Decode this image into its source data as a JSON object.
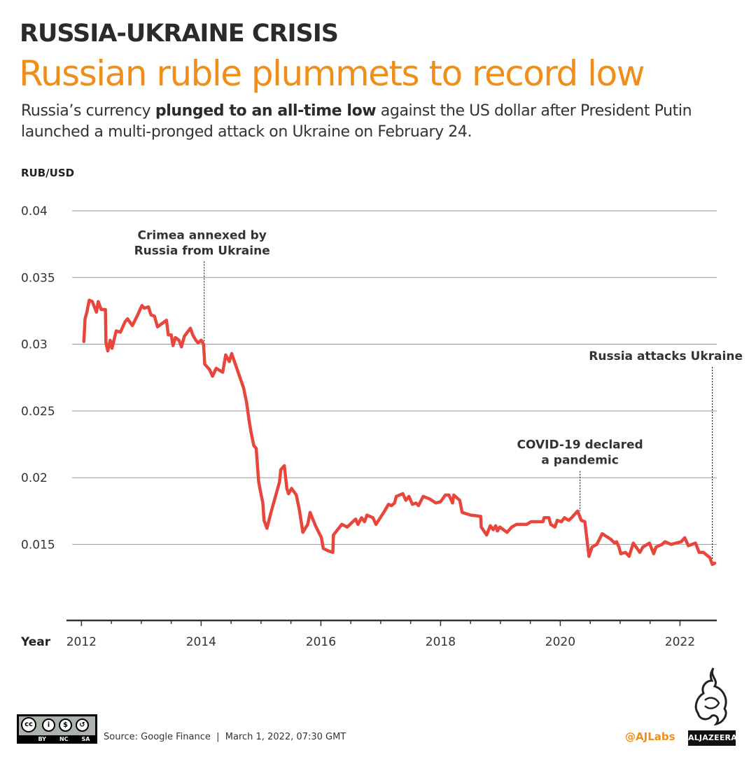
{
  "header": {
    "kicker": "RUSSIA-UKRAINE CRISIS",
    "title": "Russian ruble plummets to record low",
    "desc_pre": "Russia’s currency ",
    "desc_bold": "plunged to an all-time low",
    "desc_post": " against the US dollar after President Putin launched a multi-pronged attack on Ukraine on February 24."
  },
  "chart_data": {
    "type": "line",
    "ylabel": "RUB/USD",
    "xlabel": "Year",
    "xlim": [
      2011.75,
      2022.58
    ],
    "ylim": [
      0.0093,
      0.04
    ],
    "yticks": [
      0.04,
      0.035,
      0.03,
      0.025,
      0.02,
      0.015
    ],
    "ytick_labels": [
      "0.04",
      "0.035",
      "0.03",
      "0.025",
      "0.02",
      "0.015"
    ],
    "xticks": [
      2012,
      2014,
      2016,
      2018,
      2020,
      2022
    ],
    "xtick_labels": [
      "2012",
      "2014",
      "2016",
      "2018",
      "2020",
      "2022"
    ],
    "grid": "horizontal",
    "line_color": "#e8453c",
    "series": [
      {
        "points": [
          [
            2012.04,
            0.0302
          ],
          [
            2012.06,
            0.0319
          ],
          [
            2012.09,
            0.0324
          ],
          [
            2012.13,
            0.0333
          ],
          [
            2012.18,
            0.0332
          ],
          [
            2012.25,
            0.0324
          ],
          [
            2012.28,
            0.0332
          ],
          [
            2012.33,
            0.0326
          ],
          [
            2012.4,
            0.0326
          ],
          [
            2012.41,
            0.0301
          ],
          [
            2012.44,
            0.0295
          ],
          [
            2012.48,
            0.0303
          ],
          [
            2012.51,
            0.0297
          ],
          [
            2012.58,
            0.031
          ],
          [
            2012.65,
            0.0309
          ],
          [
            2012.73,
            0.0317
          ],
          [
            2012.77,
            0.0319
          ],
          [
            2012.85,
            0.0314
          ],
          [
            2012.94,
            0.0322
          ],
          [
            2013.01,
            0.0329
          ],
          [
            2013.05,
            0.0327
          ],
          [
            2013.12,
            0.0328
          ],
          [
            2013.16,
            0.0322
          ],
          [
            2013.22,
            0.0321
          ],
          [
            2013.27,
            0.0313
          ],
          [
            2013.36,
            0.0316
          ],
          [
            2013.42,
            0.0318
          ],
          [
            2013.45,
            0.0307
          ],
          [
            2013.5,
            0.0307
          ],
          [
            2013.53,
            0.0299
          ],
          [
            2013.57,
            0.0305
          ],
          [
            2013.63,
            0.0303
          ],
          [
            2013.67,
            0.0298
          ],
          [
            2013.72,
            0.0306
          ],
          [
            2013.82,
            0.0312
          ],
          [
            2013.86,
            0.0307
          ],
          [
            2013.91,
            0.0303
          ],
          [
            2013.95,
            0.0301
          ],
          [
            2014.0,
            0.0303
          ],
          [
            2014.04,
            0.03
          ],
          [
            2014.06,
            0.0285
          ],
          [
            2014.14,
            0.0281
          ],
          [
            2014.19,
            0.0276
          ],
          [
            2014.25,
            0.0282
          ],
          [
            2014.36,
            0.0279
          ],
          [
            2014.41,
            0.0292
          ],
          [
            2014.47,
            0.0287
          ],
          [
            2014.51,
            0.0293
          ],
          [
            2014.71,
            0.0267
          ],
          [
            2014.76,
            0.0256
          ],
          [
            2014.8,
            0.0243
          ],
          [
            2014.83,
            0.0235
          ],
          [
            2014.88,
            0.0224
          ],
          [
            2014.92,
            0.0222
          ],
          [
            2014.96,
            0.0197
          ],
          [
            2014.99,
            0.019
          ],
          [
            2015.03,
            0.0181
          ],
          [
            2015.05,
            0.0168
          ],
          [
            2015.1,
            0.0162
          ],
          [
            2015.16,
            0.0173
          ],
          [
            2015.31,
            0.0197
          ],
          [
            2015.33,
            0.0206
          ],
          [
            2015.39,
            0.0209
          ],
          [
            2015.43,
            0.0192
          ],
          [
            2015.46,
            0.0188
          ],
          [
            2015.51,
            0.0192
          ],
          [
            2015.59,
            0.0187
          ],
          [
            2015.64,
            0.0176
          ],
          [
            2015.7,
            0.0159
          ],
          [
            2015.78,
            0.0165
          ],
          [
            2015.82,
            0.0174
          ],
          [
            2015.91,
            0.0164
          ],
          [
            2016.01,
            0.0155
          ],
          [
            2016.04,
            0.0147
          ],
          [
            2016.13,
            0.0145
          ],
          [
            2016.2,
            0.0144
          ],
          [
            2016.21,
            0.0157
          ],
          [
            2016.35,
            0.0165
          ],
          [
            2016.44,
            0.0163
          ],
          [
            2016.58,
            0.0169
          ],
          [
            2016.62,
            0.0165
          ],
          [
            2016.68,
            0.017
          ],
          [
            2016.73,
            0.0167
          ],
          [
            2016.77,
            0.0172
          ],
          [
            2016.87,
            0.017
          ],
          [
            2016.92,
            0.0165
          ],
          [
            2017.05,
            0.0174
          ],
          [
            2017.13,
            0.018
          ],
          [
            2017.18,
            0.0179
          ],
          [
            2017.23,
            0.0181
          ],
          [
            2017.26,
            0.0186
          ],
          [
            2017.37,
            0.0188
          ],
          [
            2017.42,
            0.0183
          ],
          [
            2017.47,
            0.0186
          ],
          [
            2017.53,
            0.018
          ],
          [
            2017.59,
            0.0181
          ],
          [
            2017.63,
            0.0179
          ],
          [
            2017.71,
            0.0186
          ],
          [
            2017.82,
            0.0184
          ],
          [
            2017.92,
            0.0181
          ],
          [
            2018.0,
            0.0182
          ],
          [
            2018.08,
            0.0187
          ],
          [
            2018.14,
            0.0187
          ],
          [
            2018.2,
            0.0181
          ],
          [
            2018.22,
            0.0187
          ],
          [
            2018.32,
            0.0183
          ],
          [
            2018.36,
            0.0174
          ],
          [
            2018.5,
            0.0172
          ],
          [
            2018.67,
            0.0171
          ],
          [
            2018.68,
            0.0163
          ],
          [
            2018.77,
            0.0157
          ],
          [
            2018.83,
            0.0164
          ],
          [
            2018.88,
            0.0161
          ],
          [
            2018.92,
            0.0164
          ],
          [
            2018.95,
            0.016
          ],
          [
            2018.99,
            0.0163
          ],
          [
            2019.11,
            0.0159
          ],
          [
            2019.19,
            0.0163
          ],
          [
            2019.27,
            0.0165
          ],
          [
            2019.44,
            0.0165
          ],
          [
            2019.51,
            0.0167
          ],
          [
            2019.71,
            0.0167
          ],
          [
            2019.73,
            0.017
          ],
          [
            2019.81,
            0.017
          ],
          [
            2019.84,
            0.0165
          ],
          [
            2019.91,
            0.0163
          ],
          [
            2019.95,
            0.0168
          ],
          [
            2020.02,
            0.0167
          ],
          [
            2020.07,
            0.017
          ],
          [
            2020.14,
            0.0168
          ],
          [
            2020.19,
            0.017
          ],
          [
            2020.29,
            0.0175
          ],
          [
            2020.35,
            0.0168
          ],
          [
            2020.41,
            0.0167
          ],
          [
            2020.48,
            0.0141
          ],
          [
            2020.53,
            0.0148
          ],
          [
            2020.61,
            0.015
          ],
          [
            2020.7,
            0.0158
          ],
          [
            2020.77,
            0.0156
          ],
          [
            2020.84,
            0.0154
          ],
          [
            2020.91,
            0.0151
          ],
          [
            2020.94,
            0.0152
          ],
          [
            2020.98,
            0.0148
          ],
          [
            2021.01,
            0.0143
          ],
          [
            2021.09,
            0.0144
          ],
          [
            2021.15,
            0.0141
          ],
          [
            2021.22,
            0.0151
          ],
          [
            2021.33,
            0.0144
          ],
          [
            2021.38,
            0.0148
          ],
          [
            2021.49,
            0.0151
          ],
          [
            2021.56,
            0.0143
          ],
          [
            2021.6,
            0.0148
          ],
          [
            2021.7,
            0.015
          ],
          [
            2021.75,
            0.0152
          ],
          [
            2021.85,
            0.015
          ],
          [
            2022.02,
            0.0152
          ],
          [
            2022.08,
            0.0155
          ],
          [
            2022.14,
            0.0149
          ],
          [
            2022.26,
            0.0151
          ],
          [
            2022.32,
            0.0144
          ],
          [
            2022.39,
            0.0144
          ],
          [
            2022.5,
            0.014
          ],
          [
            2022.54,
            0.0135
          ],
          [
            2022.58,
            0.0136
          ]
        ]
      }
    ],
    "annotations": [
      {
        "x": 2014.05,
        "lines": [
          "Crimea annexed by",
          "Russia from Ukraine"
        ],
        "top_value": 0.0362,
        "bottom_value": 0.0302
      },
      {
        "x": 2020.33,
        "lines": [
          "COVID-19 declared",
          "a pandemic"
        ],
        "top_value": 0.0205,
        "bottom_value": 0.0175
      },
      {
        "x": 2022.54,
        "lines": [
          "Russia attacks Ukraine"
        ],
        "top_value": 0.0283,
        "bottom_value": 0.0138
      }
    ]
  },
  "footer": {
    "source": "Source: Google Finance  |  March 1, 2022, 07:30 GMT",
    "credit": "@AJLabs",
    "license": [
      "BY",
      "NC",
      "SA"
    ],
    "logo_text": "ALJAZEERA"
  }
}
